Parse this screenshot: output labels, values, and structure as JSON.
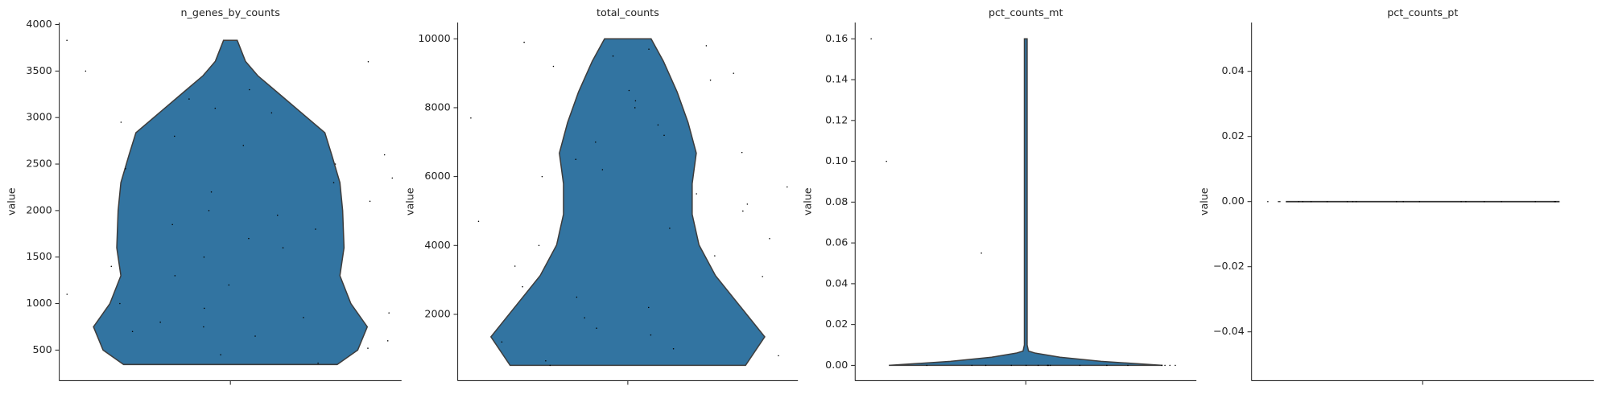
{
  "chart_data": [
    {
      "type": "violin",
      "title": "n_genes_by_counts",
      "ylabel": "value",
      "color": "#3274a1",
      "ylim": [
        171,
        4022
      ],
      "yticks": [
        500,
        1000,
        1500,
        2000,
        2500,
        3000,
        3500,
        4000
      ],
      "levels": [
        345,
        500,
        750,
        1000,
        1300,
        1600,
        2000,
        2300,
        2600,
        2837,
        3050,
        3275,
        3450,
        3605,
        3830
      ],
      "density": [
        0.78,
        0.93,
        1.0,
        0.88,
        0.8,
        0.83,
        0.82,
        0.8,
        0.74,
        0.69,
        0.52,
        0.34,
        0.2,
        0.11,
        0.05
      ],
      "points": [
        3830,
        3600,
        3500,
        3300,
        3200,
        3100,
        3050,
        2950,
        2800,
        2700,
        2600,
        2500,
        2450,
        2350,
        2300,
        2200,
        2100,
        2000,
        1950,
        1850,
        1800,
        1700,
        1600,
        1500,
        1400,
        1300,
        1200,
        1100,
        1000,
        950,
        900,
        850,
        800,
        750,
        700,
        650,
        600,
        520,
        450,
        360
      ]
    },
    {
      "type": "violin",
      "title": "total_counts",
      "ylabel": "value",
      "color": "#3274a1",
      "ylim": [
        74,
        10474
      ],
      "yticks": [
        2000,
        4000,
        6000,
        8000,
        10000
      ],
      "levels": [
        519,
        1348,
        2237,
        3126,
        4015,
        4904,
        5793,
        6681,
        7570,
        8459,
        9348,
        10000
      ],
      "density": [
        0.86,
        1.0,
        0.82,
        0.64,
        0.52,
        0.47,
        0.47,
        0.5,
        0.44,
        0.36,
        0.26,
        0.17
      ],
      "points": [
        9900,
        9800,
        9700,
        9500,
        9200,
        9000,
        8800,
        8500,
        8200,
        8000,
        7700,
        7500,
        7200,
        7000,
        6700,
        6500,
        6200,
        6000,
        5700,
        5500,
        5200,
        5000,
        4700,
        4500,
        4200,
        4000,
        3700,
        3400,
        3100,
        2800,
        2500,
        2200,
        1900,
        1600,
        1400,
        1200,
        1000,
        800,
        650,
        520
      ]
    },
    {
      "type": "violin",
      "title": "pct_counts_mt",
      "ylabel": "value",
      "color": "#3274a1",
      "ylim": [
        -0.0075,
        0.168
      ],
      "yticks": [
        {
          "value": 0,
          "label": "0.00"
        },
        {
          "value": 0.02,
          "label": "0.02"
        },
        {
          "value": 0.04,
          "label": "0.04"
        },
        {
          "value": 0.06,
          "label": "0.06"
        },
        {
          "value": 0.08,
          "label": "0.08"
        },
        {
          "value": 0.1,
          "label": "0.10"
        },
        {
          "value": 0.12,
          "label": "0.12"
        },
        {
          "value": 0.14,
          "label": "0.14"
        },
        {
          "value": 0.16,
          "label": "0.16"
        }
      ],
      "levels": [
        0,
        0.002,
        0.004,
        0.006,
        0.007,
        0.01,
        0.16
      ],
      "density": [
        1.0,
        0.55,
        0.25,
        0.07,
        0.02,
        0.01,
        0.01
      ],
      "points": [
        0.16,
        0.1,
        0.055,
        0,
        0,
        0,
        0,
        0,
        0,
        0,
        0,
        0,
        0,
        0,
        0,
        0,
        0,
        0,
        0,
        0
      ]
    },
    {
      "type": "violin",
      "title": "pct_counts_pt",
      "ylabel": "value",
      "color": "#3274a1",
      "ylim": [
        -0.055,
        0.055
      ],
      "yticks": [
        {
          "value": -0.04,
          "label": "−0.04"
        },
        {
          "value": -0.02,
          "label": "−0.02"
        },
        {
          "value": 0,
          "label": "0.00"
        },
        {
          "value": 0.02,
          "label": "0.02"
        },
        {
          "value": 0.04,
          "label": "0.04"
        }
      ],
      "levels": [
        0
      ],
      "density": [
        1.0
      ],
      "points": [
        0,
        0,
        0,
        0,
        0,
        0,
        0,
        0,
        0,
        0,
        0,
        0,
        0,
        0,
        0,
        0,
        0,
        0,
        0,
        0
      ]
    }
  ]
}
